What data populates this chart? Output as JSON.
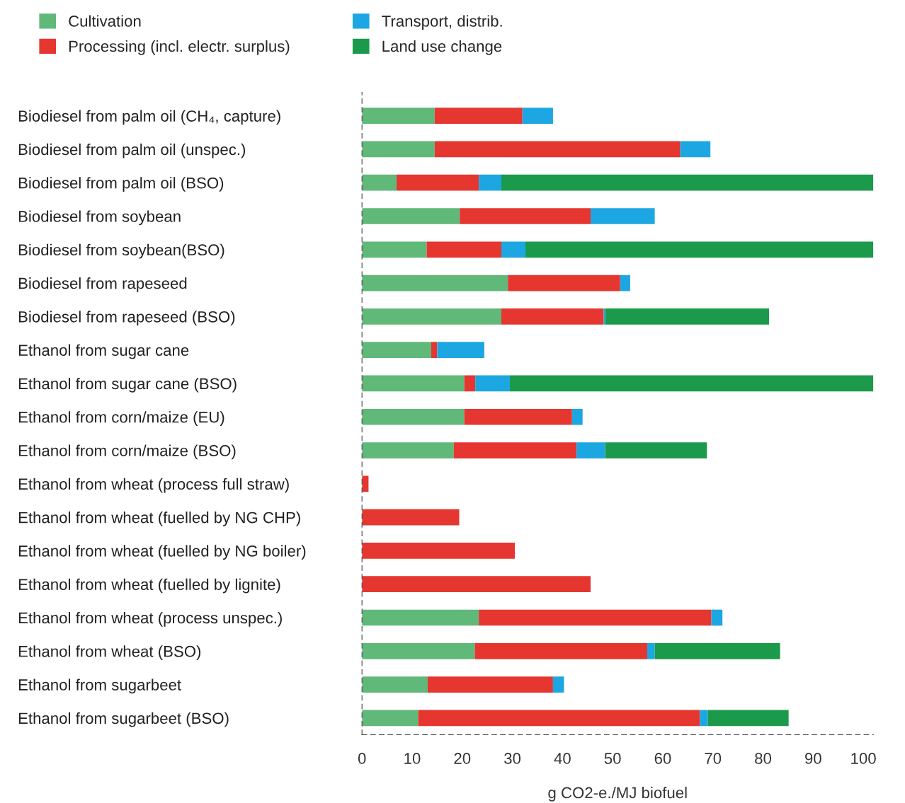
{
  "chart_data": {
    "type": "bar",
    "orientation": "horizontal",
    "stacked": true,
    "xlabel": "g CO2-e./MJ biofuel",
    "categories": [
      "Biodiesel from palm oil (CH₄, capture)",
      "Biodiesel from palm oil (unspec.)",
      "Biodiesel from palm oil (BSO)",
      "Biodiesel from soybean",
      "Biodiesel from soybean(BSO)",
      "Biodiesel from rapeseed",
      "Biodiesel from rapeseed (BSO)",
      "Ethanol from sugar cane",
      "Ethanol from sugar cane (BSO)",
      "Ethanol from corn/maize (EU)",
      "Ethanol from corn/maize (BSO)",
      "Ethanol from wheat (process full straw)",
      "Ethanol from wheat (fuelled by NG CHP)",
      "Ethanol from wheat (fuelled by NG boiler)",
      "Ethanol from wheat (fuelled by lignite)",
      "Ethanol from wheat (process unspec.)",
      "Ethanol from wheat (BSO)",
      "Ethanol from sugarbeet",
      "Ethanol from sugarbeet (BSO)"
    ],
    "series": [
      {
        "name": "Cultivation",
        "color": "#60b879",
        "values": [
          14.5,
          14.5,
          6.9,
          19.5,
          12.9,
          29.1,
          27.8,
          13.8,
          20.4,
          20.4,
          18.3,
          0,
          0,
          0,
          0,
          23.3,
          22.5,
          13.1,
          11.2
        ]
      },
      {
        "name": "Processing (incl. electr. surplus)",
        "color": "#e53630",
        "values": [
          17.5,
          49,
          16.4,
          26.1,
          14.9,
          22.4,
          20.4,
          1.2,
          2.2,
          21.5,
          24.5,
          1.3,
          19.4,
          30.5,
          45.6,
          46.4,
          34.4,
          25.0,
          56.2
        ]
      },
      {
        "name": "Transport, distrib.",
        "color": "#1ca7e3",
        "values": [
          6.1,
          6,
          4.5,
          12.8,
          4.8,
          2.0,
          0.3,
          9.4,
          6.9,
          2.1,
          5.7,
          0,
          0,
          0,
          0,
          2.2,
          1.5,
          2.2,
          1.6
        ]
      },
      {
        "name": "Land use change",
        "color": "#1b9a4b",
        "values": [
          0,
          0,
          74.2,
          0,
          69.4,
          0,
          32.7,
          0,
          72.5,
          0,
          20.3,
          0,
          0,
          0,
          0,
          0,
          25.0,
          0,
          16.1
        ]
      }
    ],
    "xlim": [
      0,
      102
    ],
    "xticks": [
      0,
      10,
      20,
      30,
      40,
      50,
      60,
      70,
      80,
      90,
      100
    ],
    "grid": false,
    "legend": "top"
  }
}
